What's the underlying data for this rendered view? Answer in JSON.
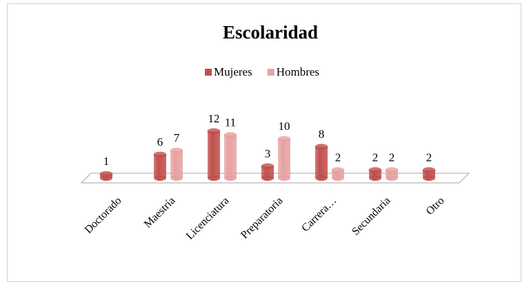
{
  "chart_data": {
    "type": "bar3d",
    "title": "Escolaridad",
    "categories": [
      "Doctorado",
      "Maestría",
      "Licenciatura",
      "Preparatoria",
      "Carrera…",
      "Secundaria",
      "Otro"
    ],
    "series": [
      {
        "name": "Mujeres",
        "color": "#c0504d",
        "values": [
          1,
          6,
          12,
          3,
          8,
          2,
          2
        ]
      },
      {
        "name": "Hombres",
        "color": "#e6a2a1",
        "values": [
          null,
          7,
          11,
          10,
          2,
          2,
          null
        ]
      }
    ],
    "legend": "top"
  }
}
